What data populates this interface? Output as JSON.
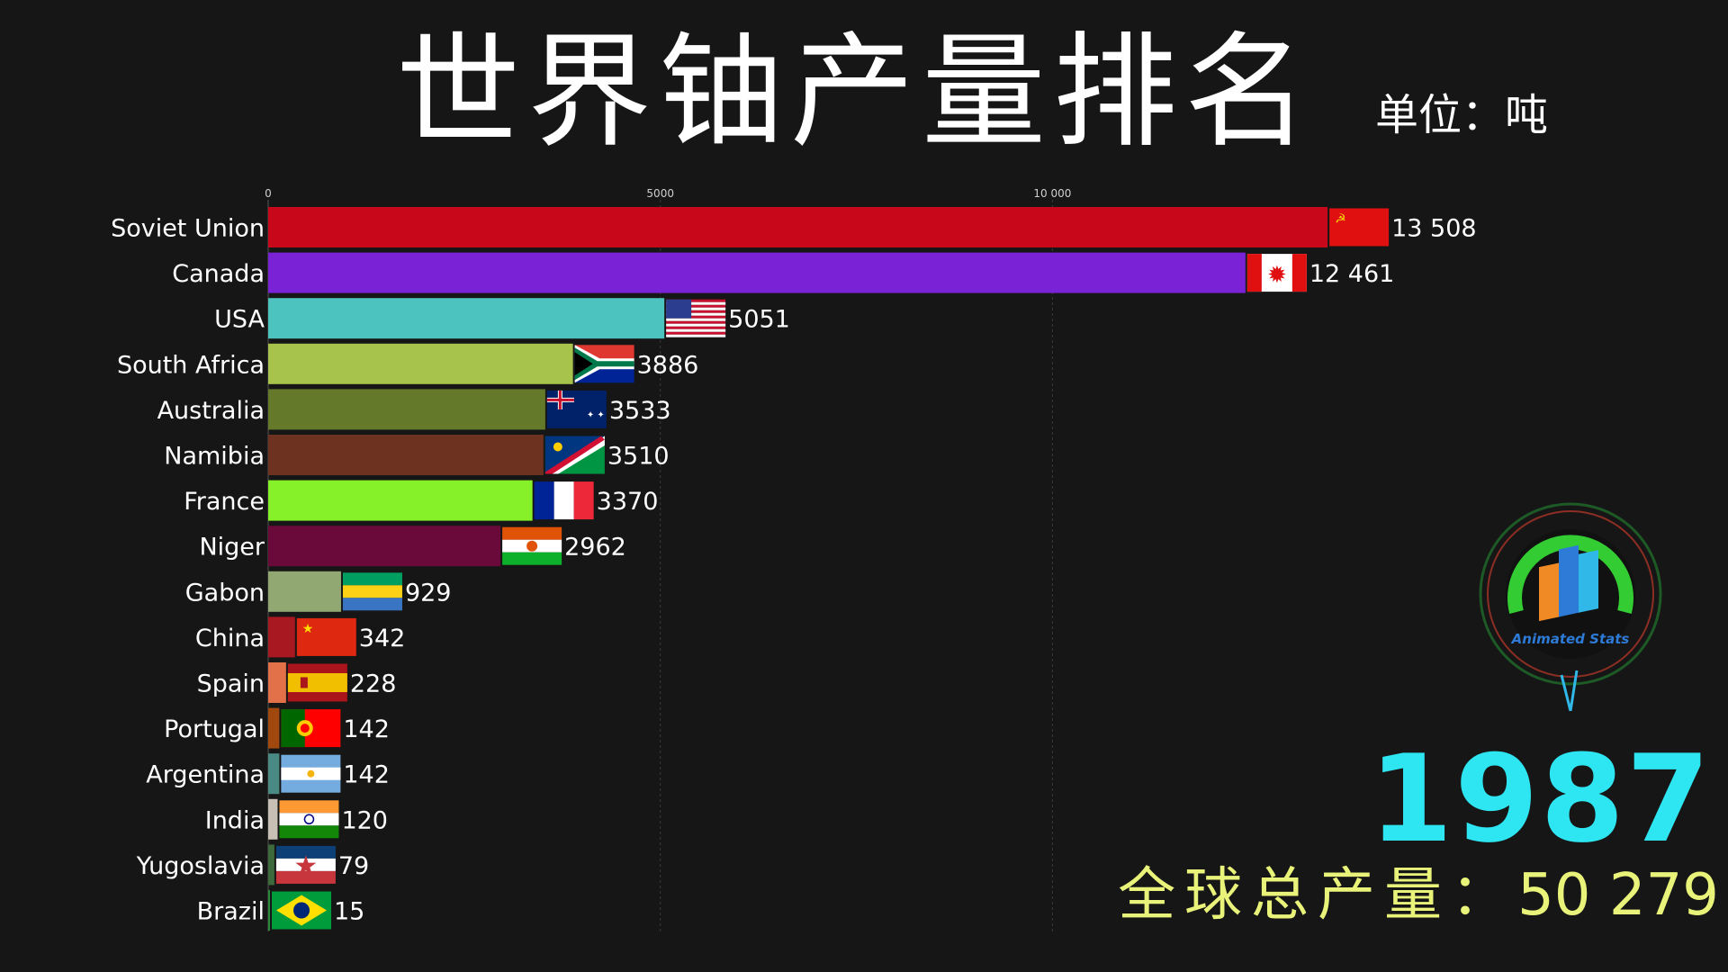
{
  "title": "世界铀产量排名",
  "unit": "单位：吨",
  "year": "1987",
  "total": {
    "label": "全球总产量：",
    "value": "50 279"
  },
  "logo_text": "Animated Stats",
  "chart_data": {
    "type": "bar",
    "orientation": "horizontal",
    "title": "世界铀产量排名",
    "xlabel": "",
    "ylabel": "",
    "xlim": [
      0,
      13508
    ],
    "ticks": [
      {
        "value": 0,
        "label": "0"
      },
      {
        "value": 5000,
        "label": "5000"
      },
      {
        "value": 10000,
        "label": "10 000"
      }
    ],
    "categories": [
      "Soviet Union",
      "Canada",
      "USA",
      "South Africa",
      "Australia",
      "Namibia",
      "France",
      "Niger",
      "Gabon",
      "China",
      "Spain",
      "Portugal",
      "Argentina",
      "India",
      "Yugoslavia",
      "Brazil"
    ],
    "values": [
      13508,
      12461,
      5051,
      3886,
      3533,
      3510,
      3370,
      2962,
      929,
      342,
      228,
      142,
      142,
      120,
      79,
      15
    ],
    "value_labels": [
      "13 508",
      "12 461",
      "5051",
      "3886",
      "3533",
      "3510",
      "3370",
      "2962",
      "929",
      "342",
      "228",
      "142",
      "142",
      "120",
      "79",
      "15"
    ],
    "colors": [
      "#c8081a",
      "#7a22d6",
      "#4cc3bf",
      "#a8c34c",
      "#647a2a",
      "#6e3220",
      "#86f028",
      "#6a0a3a",
      "#92a873",
      "#a81820",
      "#e2714a",
      "#a0480e",
      "#4a8a84",
      "#c8c0b4",
      "#3c6a3c",
      "#2a8a3a"
    ],
    "flags": [
      "ussr-flag",
      "canada-flag",
      "usa-flag",
      "south-africa-flag",
      "australia-flag",
      "namibia-flag",
      "france-flag",
      "niger-flag",
      "gabon-flag",
      "china-flag",
      "spain-flag",
      "portugal-flag",
      "argentina-flag",
      "india-flag",
      "yugoslavia-flag",
      "brazil-flag"
    ],
    "grid": true
  }
}
